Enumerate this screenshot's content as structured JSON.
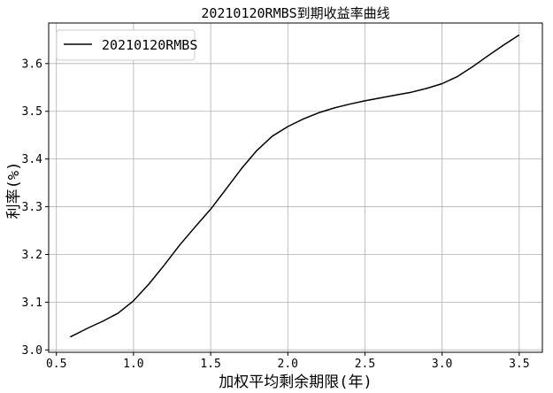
{
  "chart_data": {
    "type": "line",
    "title": "20210120RMBS到期收益率曲线",
    "xlabel": "加权平均剩余期限(年)",
    "ylabel": "利率(%)",
    "xlim": [
      0.45,
      3.65
    ],
    "ylim": [
      2.995,
      3.685
    ],
    "xticks": [
      "0.5",
      "1.0",
      "1.5",
      "2.0",
      "2.5",
      "3.0",
      "3.5"
    ],
    "yticks": [
      "3.0",
      "3.1",
      "3.2",
      "3.3",
      "3.4",
      "3.5",
      "3.6"
    ],
    "grid": true,
    "legend_position": "top-left",
    "series": [
      {
        "name": "20210120RMBS",
        "color": "#000000",
        "x": [
          0.59,
          0.7,
          0.8,
          0.9,
          1.0,
          1.1,
          1.2,
          1.3,
          1.4,
          1.5,
          1.6,
          1.7,
          1.8,
          1.9,
          2.0,
          2.1,
          2.2,
          2.3,
          2.4,
          2.5,
          2.6,
          2.7,
          2.8,
          2.9,
          3.0,
          3.1,
          3.2,
          3.3,
          3.4,
          3.5
        ],
        "y": [
          3.027,
          3.045,
          3.06,
          3.077,
          3.103,
          3.138,
          3.178,
          3.22,
          3.258,
          3.295,
          3.337,
          3.38,
          3.418,
          3.448,
          3.468,
          3.484,
          3.497,
          3.507,
          3.515,
          3.522,
          3.528,
          3.534,
          3.54,
          3.548,
          3.558,
          3.573,
          3.594,
          3.617,
          3.639,
          3.66
        ]
      }
    ]
  }
}
